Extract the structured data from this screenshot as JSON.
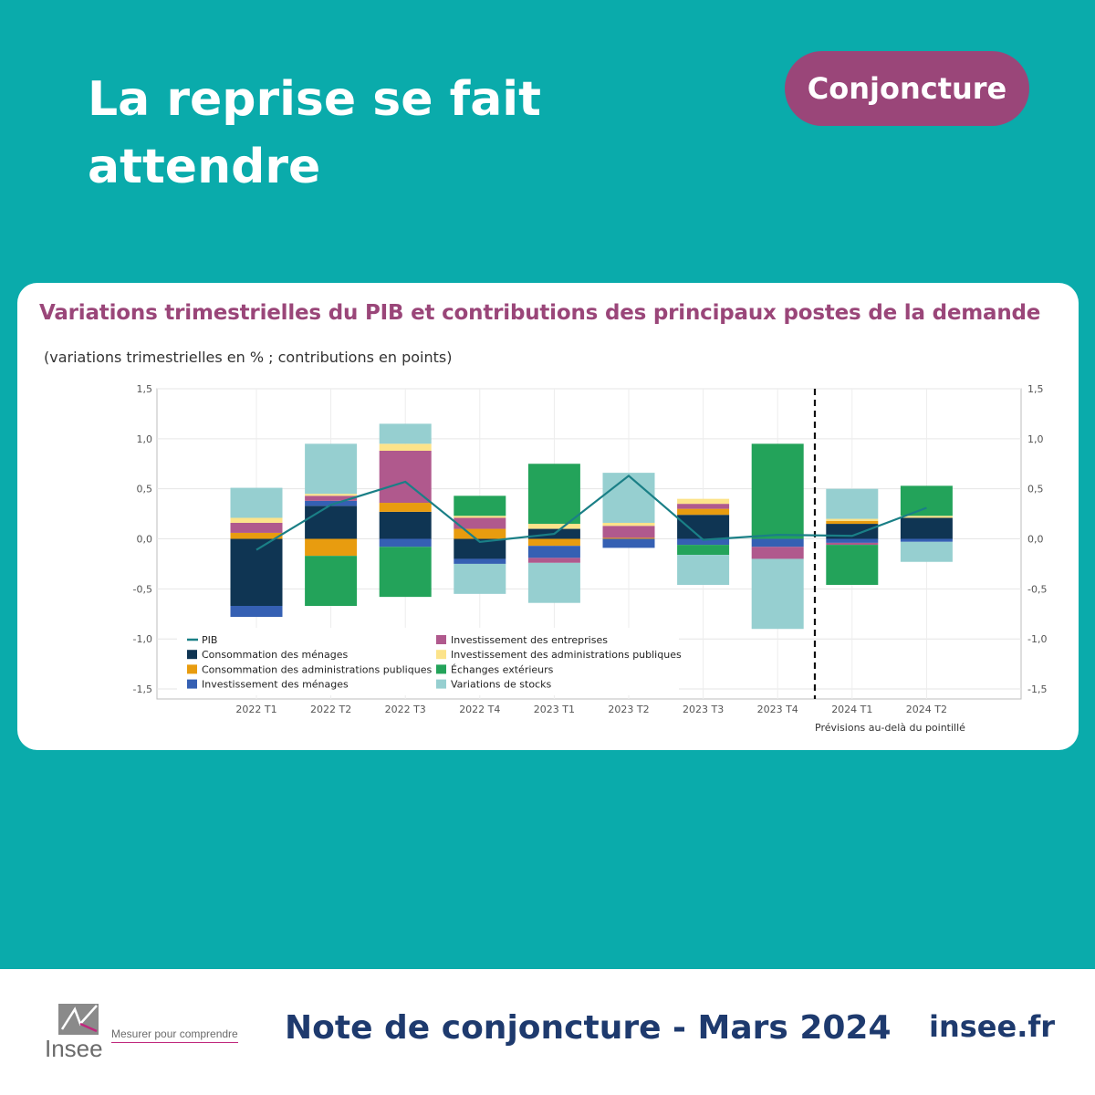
{
  "headline": "La reprise se fait attendre",
  "badge": "Conjoncture",
  "footer": {
    "logo_text": "Insee",
    "tagline": "Mesurer pour comprendre",
    "note_title": "Note de conjoncture - Mars 2024",
    "site": "insee.fr"
  },
  "colors": {
    "background": "#0aabab",
    "accent": "#9a4679",
    "footer_text": "#1e3a6e"
  },
  "chart_data": {
    "type": "bar",
    "title": "Variations trimestrielles du PIB et contributions des principaux postes de la demande",
    "subtitle": "(variations trimestrielles en % ; contributions en points)",
    "categories": [
      "2022 T1",
      "2022 T2",
      "2022 T3",
      "2022 T4",
      "2023 T1",
      "2023 T2",
      "2023 T3",
      "2023 T4",
      "2024 T1",
      "2024 T2"
    ],
    "ylim": [
      -1.6,
      1.5
    ],
    "yticks": [
      "1,5",
      "1,0",
      "0,5",
      "0,0",
      "-0,5",
      "-1,0",
      "-1,5"
    ],
    "ytick_values": [
      1.5,
      1.0,
      0.5,
      0.0,
      -0.5,
      -1.0,
      -1.5
    ],
    "forecast_note": "Prévisions au-delà du pointillé",
    "forecast_start": "2024 T1",
    "grid": true,
    "legend_position": "bottom-left",
    "series": [
      {
        "name": "Consommation des ménages",
        "color": "#0f3553",
        "values": [
          -0.67,
          0.33,
          0.27,
          -0.2,
          0.1,
          0.0,
          0.24,
          0.0,
          0.15,
          0.21
        ]
      },
      {
        "name": "Consommation des administrations publiques",
        "color": "#e89c0f",
        "values": [
          0.06,
          -0.17,
          0.09,
          0.1,
          -0.07,
          0.01,
          0.06,
          0.0,
          0.03,
          0.0
        ]
      },
      {
        "name": "Investissement des ménages",
        "color": "#3560b3",
        "values": [
          -0.11,
          0.05,
          -0.08,
          -0.05,
          -0.12,
          -0.09,
          -0.06,
          -0.08,
          -0.04,
          -0.03
        ]
      },
      {
        "name": "Investissement des entreprises",
        "color": "#b0598d",
        "values": [
          0.1,
          0.05,
          0.52,
          0.11,
          -0.05,
          0.12,
          0.05,
          -0.12,
          -0.02,
          0.0
        ]
      },
      {
        "name": "Investissement des administrations publiques",
        "color": "#fce38a",
        "values": [
          0.05,
          0.02,
          0.07,
          0.02,
          0.05,
          0.03,
          0.05,
          0.0,
          0.02,
          0.02
        ]
      },
      {
        "name": "Échanges extérieurs",
        "color": "#23a35a",
        "values": [
          0.0,
          -0.5,
          -0.5,
          0.2,
          0.6,
          0.0,
          -0.1,
          0.95,
          -0.4,
          0.3
        ]
      },
      {
        "name": "Variations de stocks",
        "color": "#96cfd0",
        "values": [
          0.3,
          0.5,
          0.2,
          -0.3,
          -0.4,
          0.5,
          -0.3,
          -0.7,
          0.3,
          -0.2
        ]
      }
    ],
    "line": {
      "name": "PIB",
      "color": "#1a7f86",
      "values": [
        -0.11,
        0.34,
        0.57,
        -0.03,
        0.05,
        0.63,
        -0.01,
        0.04,
        0.03,
        0.31
      ]
    }
  }
}
